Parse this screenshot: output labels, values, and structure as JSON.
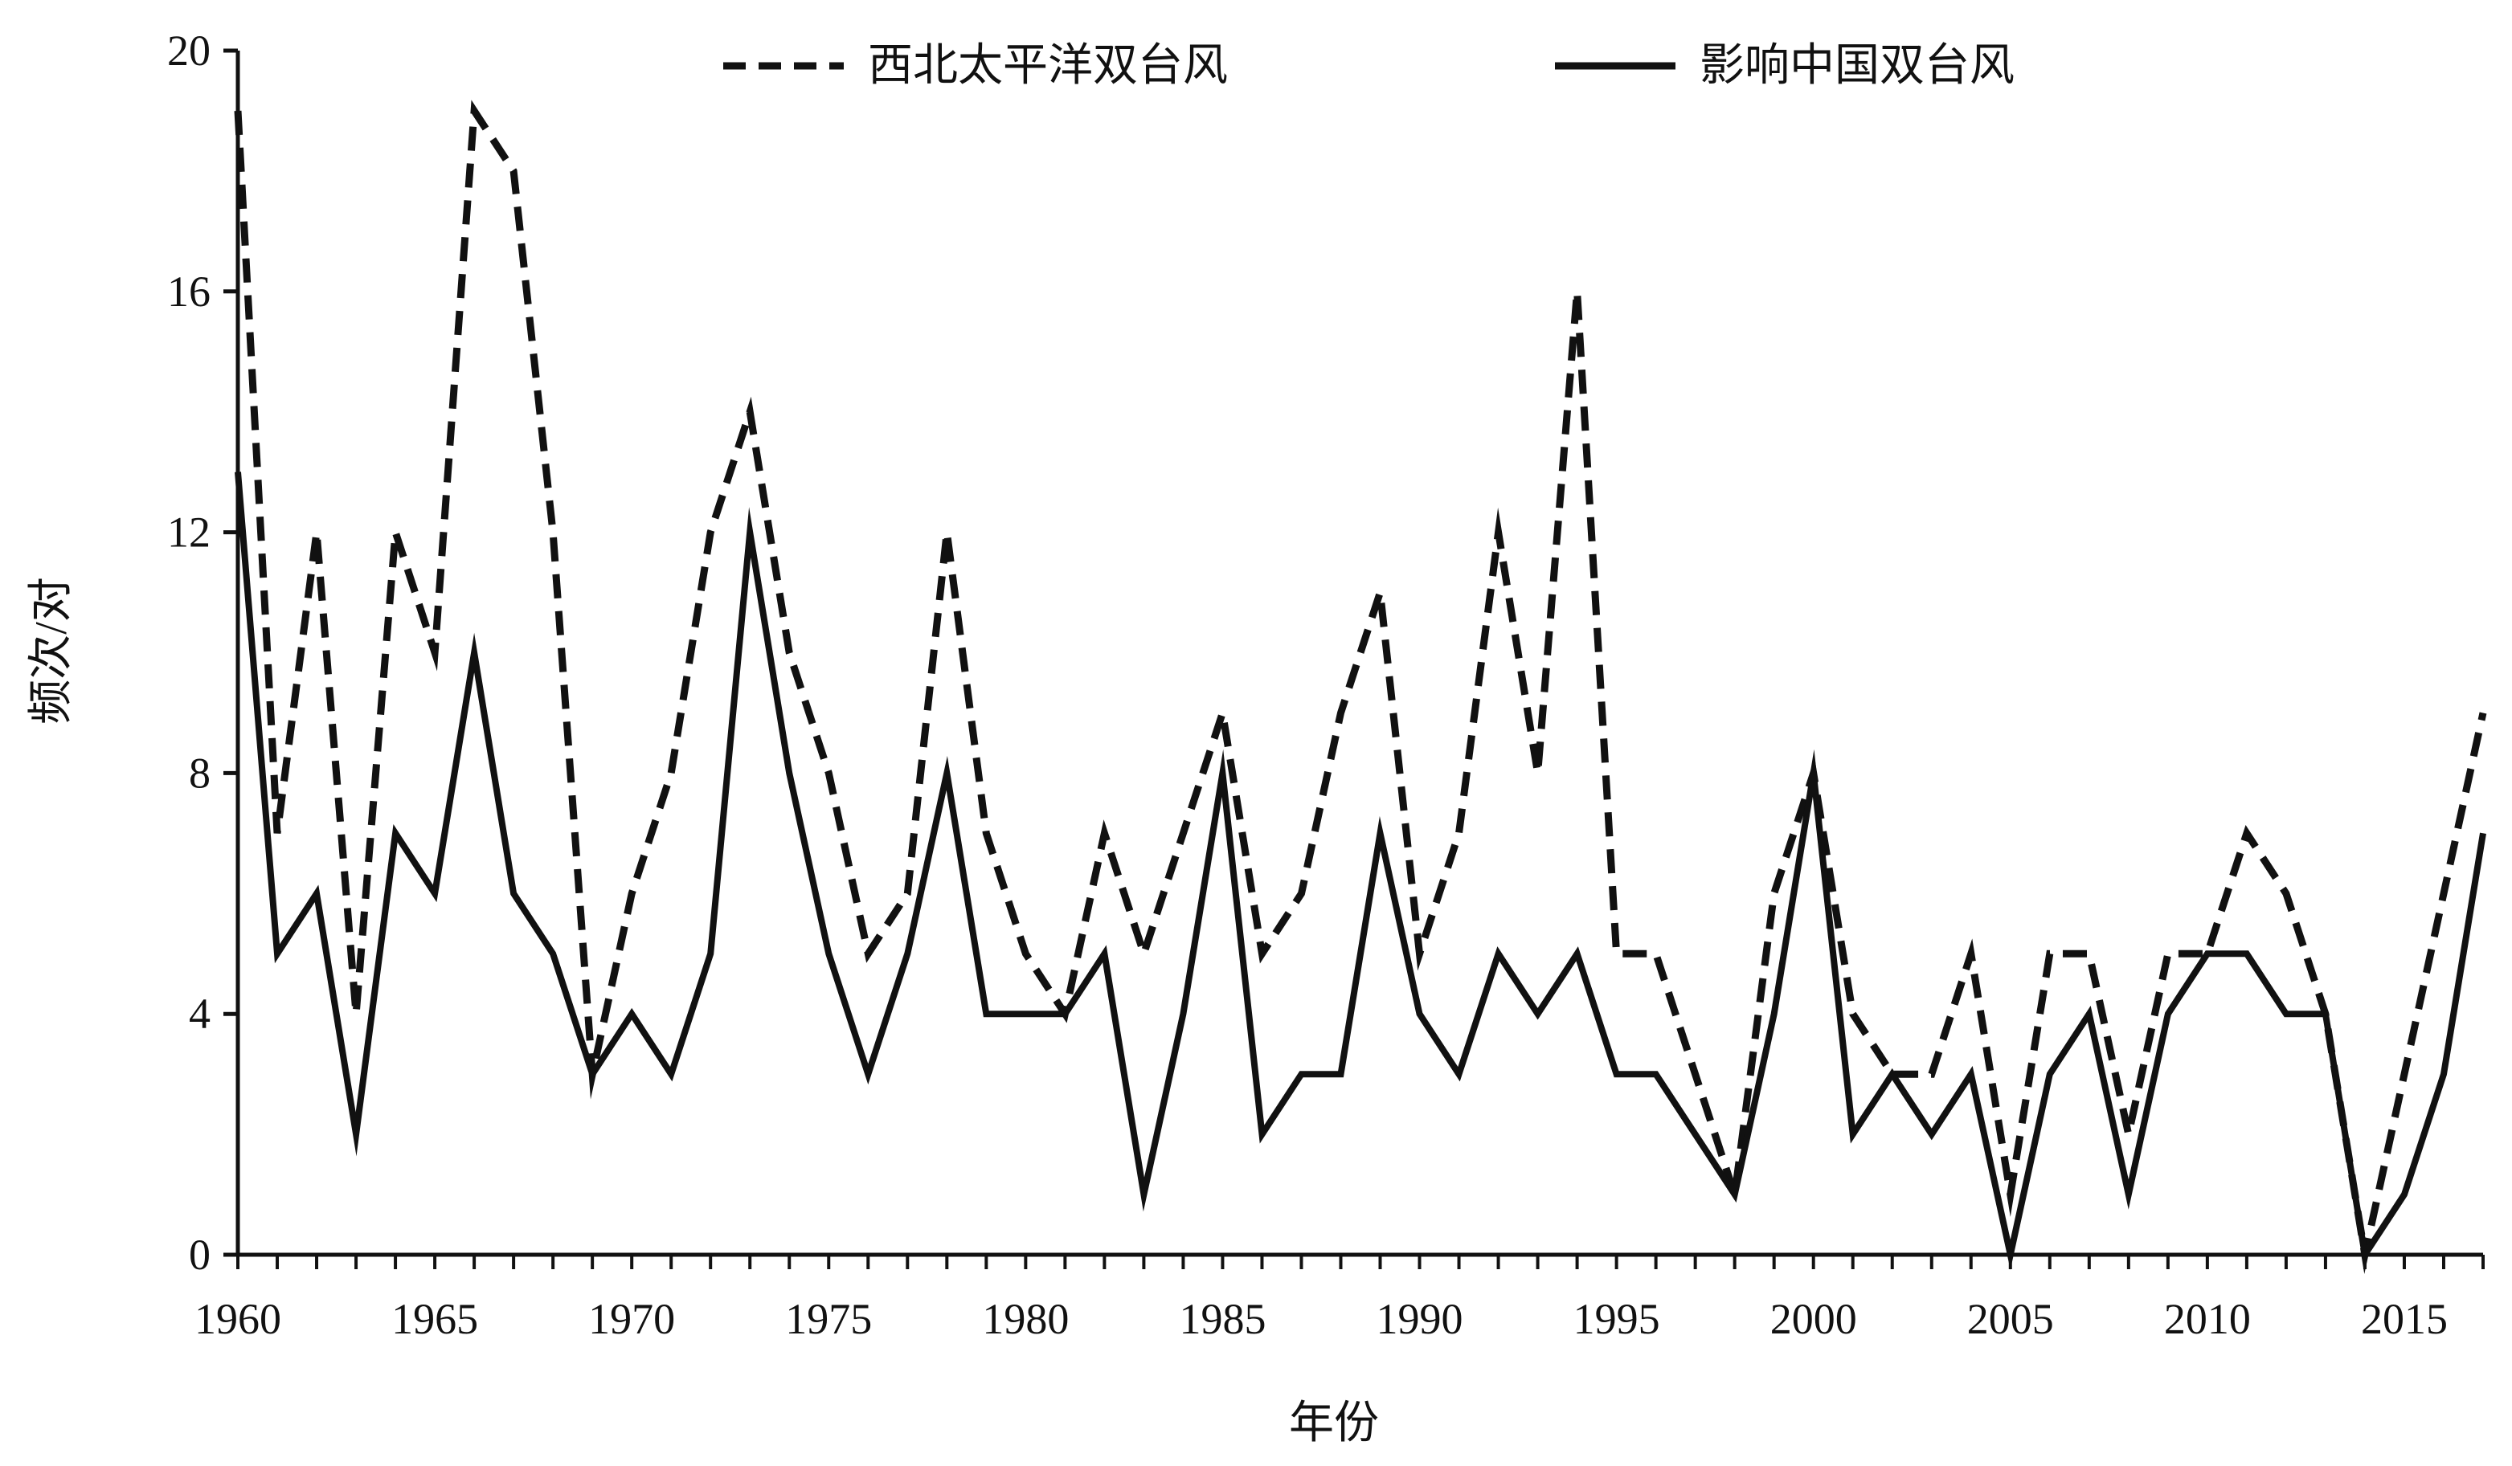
{
  "chart_data": {
    "type": "line",
    "xlabel": "年份",
    "ylabel": "频次/对",
    "ylim": [
      0,
      20
    ],
    "xlim": [
      1960,
      2017
    ],
    "yticks": [
      0,
      4,
      8,
      12,
      16,
      20
    ],
    "xticks": [
      1960,
      1965,
      1970,
      1975,
      1980,
      1985,
      1990,
      1995,
      2000,
      2005,
      2010,
      2015
    ],
    "legend_position": "top",
    "grid": false,
    "x": [
      1960,
      1961,
      1962,
      1963,
      1964,
      1965,
      1966,
      1967,
      1968,
      1969,
      1970,
      1971,
      1972,
      1973,
      1974,
      1975,
      1976,
      1977,
      1978,
      1979,
      1980,
      1981,
      1982,
      1983,
      1984,
      1985,
      1986,
      1987,
      1988,
      1989,
      1990,
      1991,
      1992,
      1993,
      1994,
      1995,
      1996,
      1997,
      1998,
      1999,
      2000,
      2001,
      2002,
      2003,
      2004,
      2005,
      2006,
      2007,
      2008,
      2009,
      2010,
      2011,
      2012,
      2013,
      2014,
      2015,
      2016,
      2017
    ],
    "series": [
      {
        "name": "西北太平洋双台风",
        "style": "dashed",
        "color": "#111111",
        "values": [
          19,
          7,
          12,
          4,
          12,
          10,
          19,
          18,
          12,
          3,
          6,
          8,
          12,
          14,
          10,
          8,
          5,
          6,
          12,
          7,
          5,
          4,
          7,
          5,
          7,
          9,
          5,
          6,
          9,
          11,
          5,
          7,
          12,
          8,
          16,
          5,
          5,
          3,
          1,
          6,
          8,
          4,
          3,
          3,
          5,
          1,
          5,
          5,
          2,
          5,
          5,
          7,
          6,
          4,
          0,
          3,
          6,
          9
        ]
      },
      {
        "name": "影响中国双台风",
        "style": "solid",
        "color": "#111111",
        "values": [
          13,
          5,
          6,
          2,
          7,
          6,
          10,
          6,
          5,
          3,
          4,
          3,
          5,
          12,
          8,
          5,
          3,
          5,
          8,
          4,
          4,
          4,
          5,
          1,
          4,
          8,
          2,
          3,
          3,
          7,
          4,
          3,
          5,
          4,
          5,
          3,
          3,
          2,
          1,
          4,
          8,
          2,
          3,
          2,
          3,
          0,
          3,
          4,
          1,
          4,
          5,
          5,
          4,
          4,
          0,
          1,
          3,
          7
        ]
      }
    ]
  }
}
